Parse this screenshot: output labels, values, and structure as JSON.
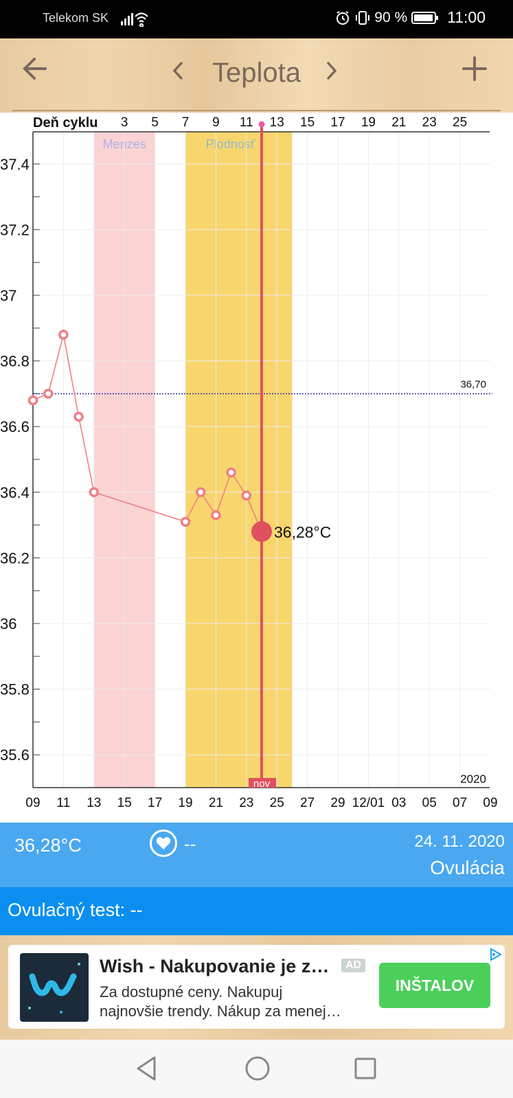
{
  "status_bar": {
    "carrier": "Telekom SK",
    "battery": "90 %",
    "time": "11:00"
  },
  "header": {
    "title": "Teplota"
  },
  "chart_data": {
    "type": "line",
    "cycle_label": "Deň cyklu",
    "cycle_ticks": [
      "3",
      "5",
      "7",
      "9",
      "11",
      "13",
      "15",
      "17",
      "19",
      "21",
      "23",
      "25"
    ],
    "date_ticks": [
      "09",
      "11",
      "13",
      "15",
      "17",
      "19",
      "21",
      "23",
      "25",
      "27",
      "29",
      "12/01",
      "03",
      "05",
      "07",
      "09"
    ],
    "year": "2020",
    "y_ticks": [
      "37.4",
      "37.2",
      "37",
      "36.8",
      "36.6",
      "36.4",
      "36.2",
      "36",
      "35.8",
      "35.6"
    ],
    "ylim": [
      35.5,
      37.5
    ],
    "baseline": {
      "value": 36.7,
      "label": "36,70"
    },
    "bands": [
      {
        "label": "Menzes",
        "start": 13,
        "end": 17,
        "color": "#fbd3d3",
        "text_color": "#aab4e6"
      },
      {
        "label": "Plodnosť",
        "start": 19,
        "end": 26,
        "color": "#f8d66d",
        "text_color": "#98b7c9"
      }
    ],
    "series": [
      {
        "points": [
          {
            "day": 9,
            "value": 36.68
          },
          {
            "day": 10,
            "value": 36.7
          },
          {
            "day": 11,
            "value": 36.88
          },
          {
            "day": 12,
            "value": 36.63
          },
          {
            "day": 13,
            "value": 36.4
          },
          {
            "day": 19,
            "value": 36.31
          },
          {
            "day": 20,
            "value": 36.4
          },
          {
            "day": 21,
            "value": 36.33
          },
          {
            "day": 22,
            "value": 36.46
          },
          {
            "day": 23,
            "value": 36.39
          },
          {
            "day": 24,
            "value": 36.28
          }
        ],
        "color": "#f07e86"
      }
    ],
    "current": {
      "day": 24,
      "value": 36.28,
      "label": "36,28°C",
      "marker_label": "nov"
    },
    "colors": {
      "current": "#e0505e",
      "grid": "#ececec",
      "baseline": "#2a2aa8"
    }
  },
  "info": {
    "temperature": "36,28°C",
    "heart_value": "--",
    "date": "24. 11. 2020",
    "phase": "Ovulácia"
  },
  "test": {
    "label": "Ovulačný test: --"
  },
  "ad": {
    "title": "Wish - Nakupovanie je z…",
    "badge": "AD",
    "desc1": "Za dostupné ceny. Nakupuj",
    "desc2": "najnovšie trendy. Nákup za menej…",
    "install": "INŠTALOV"
  },
  "icons": {
    "back": "arrow-left-icon",
    "add": "plus-icon",
    "prev": "chevron-left-icon",
    "next": "chevron-right-icon",
    "heart": "heart-icon"
  }
}
